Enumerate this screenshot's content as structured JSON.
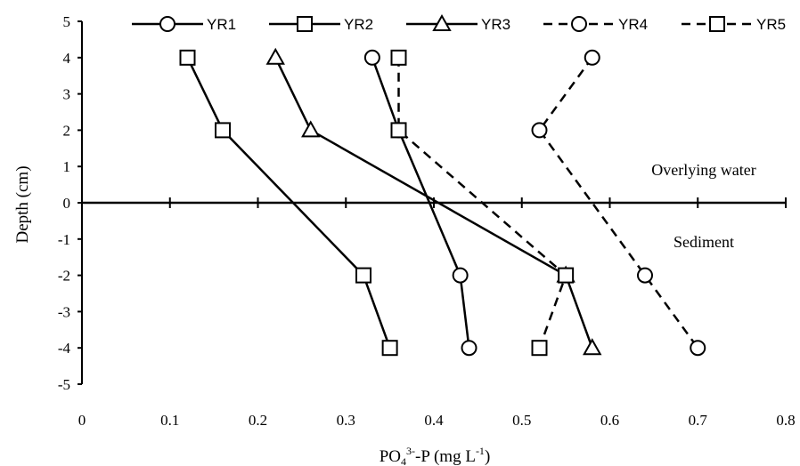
{
  "chart_data": {
    "type": "line",
    "xlabel_base": "PO",
    "xlabel_sub": "4",
    "xlabel_sup": "3-",
    "xlabel_mid": "-P (mg L",
    "xlabel_unit_sup": "-1",
    "xlabel_end": ")",
    "ylabel": "Depth (cm)",
    "xlim": [
      0,
      0.8
    ],
    "ylim": [
      -5,
      5
    ],
    "xticks": [
      "0",
      "0.1",
      "0.2",
      "0.3",
      "0.4",
      "0.5",
      "0.6",
      "0.7",
      "0.8"
    ],
    "yticks": [
      "5",
      "4",
      "3",
      "2",
      "1",
      "0",
      "-1",
      "-2",
      "-3",
      "-4",
      "-5"
    ],
    "grid": false,
    "legend_position": "top",
    "annotations": [
      {
        "text": "Overlying water",
        "x": 0.7,
        "y": 1
      },
      {
        "text": "Sediment",
        "x": 0.7,
        "y": -1
      }
    ],
    "series": [
      {
        "name": "YR1",
        "marker": "circle",
        "dash": "solid",
        "x": [
          0.33,
          0.36,
          0.43,
          0.44
        ],
        "y": [
          4,
          2,
          -2,
          -4
        ]
      },
      {
        "name": "YR2",
        "marker": "square",
        "dash": "solid",
        "x": [
          0.12,
          0.16,
          0.32,
          0.35
        ],
        "y": [
          4,
          2,
          -2,
          -4
        ]
      },
      {
        "name": "YR3",
        "marker": "triangle",
        "dash": "solid",
        "x": [
          0.22,
          0.26,
          0.55,
          0.58
        ],
        "y": [
          4,
          2,
          -2,
          -4
        ]
      },
      {
        "name": "YR4",
        "marker": "circle",
        "dash": "dashed",
        "x": [
          0.58,
          0.52,
          0.64,
          0.7
        ],
        "y": [
          4,
          2,
          -2,
          -4
        ]
      },
      {
        "name": "YR5",
        "marker": "square",
        "dash": "dashed",
        "x": [
          0.36,
          0.36,
          0.55,
          0.52
        ],
        "y": [
          4,
          2,
          -2,
          -4
        ]
      }
    ]
  }
}
